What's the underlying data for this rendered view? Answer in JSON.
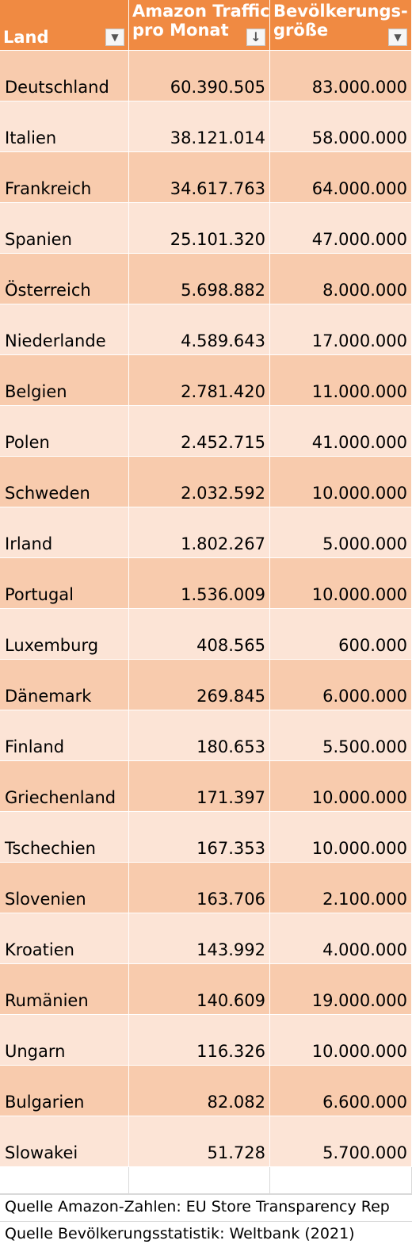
{
  "header": {
    "col1": "Land",
    "col2_line1": "Amazon Traffic",
    "col2_line2": "pro Monat",
    "col3_line1": "Bevölkerungs-",
    "col3_line2": "größe",
    "filter_icon_glyph": "▼",
    "sort_desc_icon_glyph": "↓"
  },
  "rows": [
    {
      "land": "Deutschland",
      "traffic": "60.390.505",
      "population": "83.000.000"
    },
    {
      "land": "Italien",
      "traffic": "38.121.014",
      "population": "58.000.000"
    },
    {
      "land": "Frankreich",
      "traffic": "34.617.763",
      "population": "64.000.000"
    },
    {
      "land": "Spanien",
      "traffic": "25.101.320",
      "population": "47.000.000"
    },
    {
      "land": "Österreich",
      "traffic": "5.698.882",
      "population": "8.000.000"
    },
    {
      "land": "Niederlande",
      "traffic": "4.589.643",
      "population": "17.000.000"
    },
    {
      "land": "Belgien",
      "traffic": "2.781.420",
      "population": "11.000.000"
    },
    {
      "land": "Polen",
      "traffic": "2.452.715",
      "population": "41.000.000"
    },
    {
      "land": "Schweden",
      "traffic": "2.032.592",
      "population": "10.000.000"
    },
    {
      "land": "Irland",
      "traffic": "1.802.267",
      "population": "5.000.000"
    },
    {
      "land": "Portugal",
      "traffic": "1.536.009",
      "population": "10.000.000"
    },
    {
      "land": "Luxemburg",
      "traffic": "408.565",
      "population": "600.000"
    },
    {
      "land": "Dänemark",
      "traffic": "269.845",
      "population": "6.000.000"
    },
    {
      "land": "Finland",
      "traffic": "180.653",
      "population": "5.500.000"
    },
    {
      "land": "Griechenland",
      "traffic": "171.397",
      "population": "10.000.000"
    },
    {
      "land": "Tschechien",
      "traffic": "167.353",
      "population": "10.000.000"
    },
    {
      "land": "Slovenien",
      "traffic": "163.706",
      "population": "2.100.000"
    },
    {
      "land": "Kroatien",
      "traffic": "143.992",
      "population": "4.000.000"
    },
    {
      "land": "Rumänien",
      "traffic": "140.609",
      "population": "19.000.000"
    },
    {
      "land": "Ungarn",
      "traffic": "116.326",
      "population": "10.000.000"
    },
    {
      "land": "Bulgarien",
      "traffic": "82.082",
      "population": "6.600.000"
    },
    {
      "land": "Slowakei",
      "traffic": "51.728",
      "population": "5.700.000"
    }
  ],
  "sources": {
    "amazon": "Quelle Amazon-Zahlen: EU Store Transparency Rep",
    "population": "Quelle Bevölkerungsstatistik: Weltbank (2021)"
  },
  "colors": {
    "header": "#f08a42",
    "row_dark": "#f8cbad",
    "row_light": "#fce4d6"
  }
}
